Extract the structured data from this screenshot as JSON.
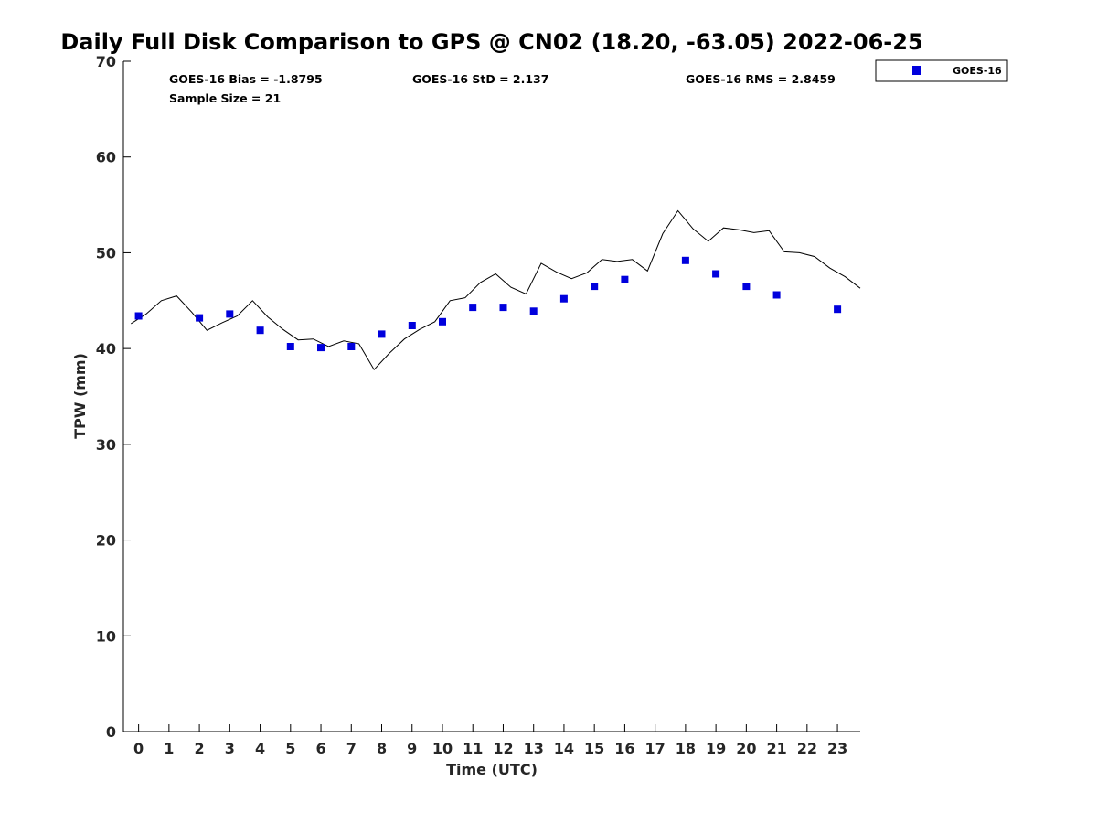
{
  "chart_data": {
    "type": "scatter",
    "title": "Daily Full Disk Comparison to GPS @ CN02 (18.20, -63.05) 2022-06-25",
    "xlabel": "Time (UTC)",
    "ylabel": "TPW (mm)",
    "xlim": [
      -0.5,
      23.75
    ],
    "ylim": [
      0,
      70
    ],
    "x_ticks": [
      0,
      1,
      2,
      3,
      4,
      5,
      6,
      7,
      8,
      9,
      10,
      11,
      12,
      13,
      14,
      15,
      16,
      17,
      18,
      19,
      20,
      21,
      22,
      23
    ],
    "x_tick_labels": [
      "0",
      "1",
      "2",
      "3",
      "4",
      "5",
      "6",
      "7",
      "8",
      "9",
      "10",
      "11",
      "12",
      "13",
      "14",
      "15",
      "16",
      "17",
      "18",
      "19",
      "20",
      "21",
      "22",
      "23"
    ],
    "y_ticks": [
      0,
      10,
      20,
      30,
      40,
      50,
      60,
      70
    ],
    "y_tick_labels": [
      "0",
      "10",
      "20",
      "30",
      "40",
      "50",
      "60",
      "70"
    ],
    "grid": false,
    "legend_position": "top-right",
    "colors": {
      "goes16": "#0000dd",
      "gps": "#000000"
    },
    "stats": {
      "bias": "GOES-16 Bias = -1.8795",
      "std": "GOES-16 StD = 2.137",
      "rms": "GOES-16 RMS = 2.8459",
      "sample": "Sample Size = 21"
    },
    "series": [
      {
        "name": "GOES-16",
        "kind": "scatter",
        "x": [
          0,
          2,
          3,
          4,
          5,
          6,
          7,
          8,
          9,
          10,
          11,
          12,
          13,
          14,
          15,
          16,
          18,
          19,
          20,
          21,
          23
        ],
        "y": [
          43.4,
          43.2,
          43.6,
          41.9,
          40.2,
          40.1,
          40.2,
          41.5,
          42.4,
          42.8,
          44.3,
          44.3,
          43.9,
          45.2,
          46.5,
          47.2,
          49.2,
          47.8,
          46.5,
          45.6,
          44.1
        ]
      },
      {
        "kind": "line",
        "x": [
          -0.25,
          0.25,
          0.75,
          1.25,
          1.75,
          2.25,
          2.75,
          3.25,
          3.75,
          4.25,
          4.75,
          5.25,
          5.75,
          6.25,
          6.75,
          7.25,
          7.75,
          8.25,
          8.75,
          9.25,
          9.75,
          10.25,
          10.75,
          11.25,
          11.75,
          12.25,
          12.75,
          13.25,
          13.75,
          14.25,
          14.75,
          15.25,
          15.75,
          16.25,
          16.75,
          17.25,
          17.75,
          18.25,
          18.75,
          19.25,
          19.75,
          20.25,
          20.75,
          21.25,
          21.75,
          22.25,
          22.75,
          23.25,
          23.75
        ],
        "y": [
          42.6,
          43.6,
          45.0,
          45.5,
          43.8,
          41.9,
          42.7,
          43.4,
          45.0,
          43.3,
          42.0,
          40.9,
          41.0,
          40.2,
          40.8,
          40.5,
          37.8,
          39.5,
          41.0,
          42.0,
          42.8,
          45.0,
          45.3,
          46.9,
          47.8,
          46.4,
          45.7,
          48.9,
          48.0,
          47.3,
          47.9,
          49.3,
          49.1,
          49.3,
          48.1,
          52.0,
          54.4,
          52.5,
          51.2,
          52.6,
          52.4,
          52.1,
          52.3,
          50.1,
          50.0,
          49.6,
          48.4,
          47.5,
          46.3
        ]
      }
    ]
  }
}
